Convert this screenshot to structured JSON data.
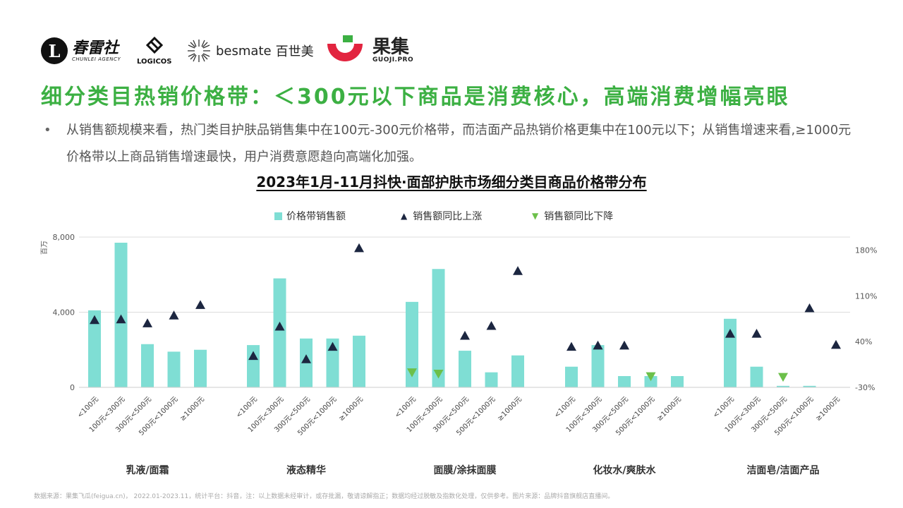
{
  "logos": {
    "chunlei": {
      "mark": "L",
      "name_cn": "春雷社",
      "name_en": "CHUNLEI AGENCY"
    },
    "logicos": {
      "name": "LOGICOS"
    },
    "besmate": {
      "name_en": "besmate",
      "name_cn": "百世美"
    },
    "guoji": {
      "name_cn": "果集",
      "name_en": "GUOJI.PRO"
    }
  },
  "headline": "细分类目热销价格带：＜300元以下商品是消费核心，高端消费增幅亮眼",
  "bullet": {
    "marker": "•",
    "text": "从销售额规模来看，热门类目护肤品销售集中在100元-300元价格带，而洁面产品热销价格更集中在100元以下；从销售增速来看,≥1000元价格带以上商品销售增速最快，用户消费意愿趋向高端化加强。"
  },
  "chart_title": "2023年1月-11月抖快·面部护肤市场细分类目商品价格带分布",
  "legend": {
    "bar": "价格带销售额",
    "up": "销售额同比上涨",
    "down": "销售额同比下降"
  },
  "colors": {
    "bar": "#7fded4",
    "up": "#1c2640",
    "down": "#6cc04a",
    "headline": "#3cb043"
  },
  "chart_data": {
    "type": "bar",
    "title": "2023年1月-11月抖快·面部护肤市场细分类目商品价格带分布",
    "ylabel": "百万",
    "ylim": [
      0,
      8000
    ],
    "y_ticks": [
      "0",
      "4,000",
      "8,000"
    ],
    "y2_ticks": [
      "-30%",
      "40%",
      "110%",
      "180%"
    ],
    "y2lim": [
      -30,
      200
    ],
    "groups": [
      {
        "name": "乳液/面霜",
        "categories": [
          "<100元",
          "100元<300元",
          "300元<500元",
          "500元<1000元",
          "≥1000元"
        ],
        "values": [
          4100,
          7700,
          2300,
          1900,
          2000
        ],
        "yoy": [
          73,
          74,
          68,
          80,
          96
        ],
        "yoy_dir": [
          "up",
          "up",
          "up",
          "up",
          "up"
        ]
      },
      {
        "name": "液态精华",
        "categories": [
          "<100元",
          "100元<300元",
          "300元<500元",
          "500元<1000元",
          "≥1000元"
        ],
        "values": [
          2250,
          5800,
          2600,
          2600,
          2750
        ],
        "yoy": [
          18,
          63,
          13,
          32,
          183
        ],
        "yoy_dir": [
          "up",
          "up",
          "up",
          "up",
          "up"
        ]
      },
      {
        "name": "面膜/涂抹面膜",
        "categories": [
          "<100元",
          "100元<300元",
          "300元<500元",
          "500元<1000元",
          "≥1000元"
        ],
        "values": [
          4550,
          6300,
          1950,
          800,
          1700
        ],
        "yoy": [
          -7,
          -9,
          49,
          64,
          148
        ],
        "yoy_dir": [
          "down",
          "down",
          "up",
          "up",
          "up"
        ]
      },
      {
        "name": "化妆水/爽肤水",
        "categories": [
          "<100元",
          "100元<300元",
          "300元<500元",
          "500元<1000元",
          "≥1000元"
        ],
        "values": [
          1100,
          2250,
          600,
          600,
          600
        ],
        "yoy": [
          32,
          34,
          34,
          -13,
          null
        ],
        "yoy_dir": [
          "up",
          "up",
          "up",
          "down",
          null
        ]
      },
      {
        "name": "洁面皂/洁面产品",
        "categories": [
          "<100元",
          "100元<300元",
          "300元<500元",
          "500元<1000元",
          "≥1000元"
        ],
        "values": [
          3650,
          1100,
          80,
          80,
          0
        ],
        "yoy": [
          52,
          52,
          -14,
          91,
          35
        ],
        "yoy_dir": [
          "up",
          "up",
          "down",
          "up",
          "up"
        ]
      }
    ]
  },
  "footer": "数据来源：果集飞瓜(feigua.cn)， 2022.01-2023.11，统计平台：抖音，注：以上数据未经审计，或存批漏，敬请谅解指正；数据均经过脱敏及指数化处理，仅供参考。图片来源：品牌抖音旗舰店直播间。"
}
